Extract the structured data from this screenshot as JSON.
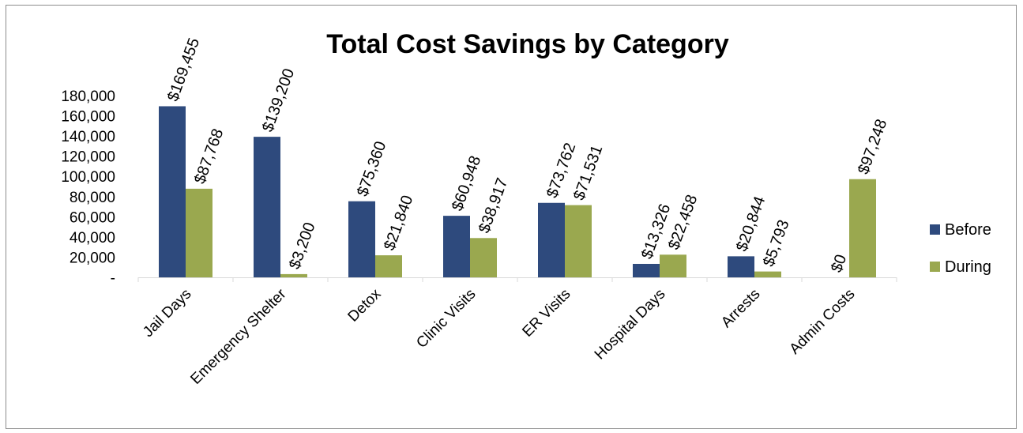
{
  "chart_data": {
    "type": "bar",
    "title": "Total Cost Savings by Category",
    "xlabel": "",
    "ylabel": "",
    "categories": [
      "Jail Days",
      "Emergency Shelter",
      "Detox",
      "Clinic Visits",
      "ER Visits",
      "Hospital Days",
      "Arrests",
      "Admin Costs"
    ],
    "series": [
      {
        "name": "Before",
        "color": "#2E4A7D",
        "values": [
          169455,
          139200,
          75360,
          60948,
          73762,
          13326,
          20844,
          0
        ],
        "labels": [
          "$169,455",
          "$139,200",
          "$75,360",
          "$60,948",
          "$73,762",
          "$13,326",
          "$20,844",
          "$0"
        ]
      },
      {
        "name": "During",
        "color": "#9AA84F",
        "values": [
          87768,
          3200,
          21840,
          38917,
          71531,
          22458,
          5793,
          97248
        ],
        "labels": [
          "$87,768",
          "$3,200",
          "$21,840",
          "$38,917",
          "$71,531",
          "$22,458",
          "$5,793",
          "$97,248"
        ]
      }
    ],
    "ylim": [
      0,
      180000
    ],
    "yticks": [
      "-",
      "20,000",
      "40,000",
      "60,000",
      "80,000",
      "100,000",
      "120,000",
      "140,000",
      "160,000",
      "180,000"
    ],
    "grid": false,
    "legend_position": "right"
  }
}
